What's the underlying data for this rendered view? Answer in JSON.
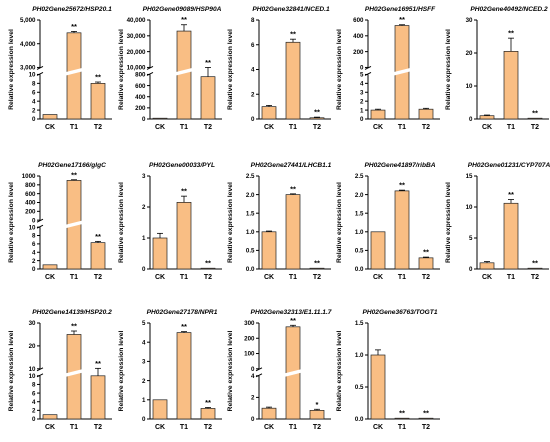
{
  "colors": {
    "bar_fill": "#f9be84",
    "bar_stroke": "#222222",
    "axis": "#000000",
    "break": "#ffffff"
  },
  "ylabel": "Relative expression level",
  "chart_data": [
    {
      "type": "bar",
      "title": "PH02Gene25672/HSP20.1",
      "categories": [
        "CK",
        "T1",
        "T2"
      ],
      "values": [
        1,
        4460,
        8
      ],
      "errors": [
        0.1,
        60,
        0.3
      ],
      "significance": [
        "",
        "**",
        "**"
      ],
      "broken_axis": true,
      "lower_ticks": [
        "0",
        "2",
        "4",
        "6",
        "8",
        "10"
      ],
      "upper_ticks": [
        "3,000",
        "4,000",
        "5,000"
      ],
      "lower_range": [
        0,
        10
      ],
      "upper_range": [
        3000,
        5000
      ],
      "ylabel": "Relative expression level"
    },
    {
      "type": "bar",
      "title": "PH02Gene09089/HSP90A",
      "categories": [
        "CK",
        "T1",
        "T2"
      ],
      "values": [
        1,
        33000,
        760
      ],
      "errors": [
        0.1,
        4000,
        50
      ],
      "significance": [
        "",
        "**",
        "**"
      ],
      "broken_axis": true,
      "lower_ticks": [
        "0",
        "200",
        "400",
        "600",
        "800"
      ],
      "upper_ticks": [
        "10,000",
        "20,000",
        "30,000",
        "40,000"
      ],
      "lower_range": [
        0,
        800
      ],
      "upper_range": [
        10000,
        40000
      ],
      "ylabel": "Relative expression level"
    },
    {
      "type": "bar",
      "title": "PH02Gene32841/NCED.1",
      "categories": [
        "CK",
        "T1",
        "T2"
      ],
      "values": [
        1,
        6.2,
        0.1
      ],
      "errors": [
        0.1,
        0.25,
        0.05
      ],
      "significance": [
        "",
        "**",
        "**"
      ],
      "broken_axis": false,
      "ticks": [
        "0",
        "2",
        "4",
        "6",
        "8"
      ],
      "ylim": [
        0,
        8
      ],
      "ylabel": "Relative expression level"
    },
    {
      "type": "bar",
      "title": "PH02Gene16951/HSFF",
      "categories": [
        "CK",
        "T1",
        "T2"
      ],
      "values": [
        1,
        530,
        1.1
      ],
      "errors": [
        0.1,
        10,
        0.1
      ],
      "significance": [
        "",
        "**",
        ""
      ],
      "broken_axis": true,
      "lower_ticks": [
        "0",
        "1",
        "2",
        "3",
        "4",
        "5"
      ],
      "upper_ticks": [
        "0",
        "200",
        "400",
        "600"
      ],
      "lower_range": [
        0,
        5
      ],
      "upper_range": [
        0,
        600
      ],
      "ylabel": "Relative expression level"
    },
    {
      "type": "bar",
      "title": "PH02Gene40492/NCED.2",
      "categories": [
        "CK",
        "T1",
        "T2"
      ],
      "values": [
        1,
        20.5,
        0.2
      ],
      "errors": [
        0.2,
        4,
        0.05
      ],
      "significance": [
        "",
        "**",
        "**"
      ],
      "broken_axis": false,
      "ticks": [
        "0",
        "10",
        "20",
        "30"
      ],
      "ylim": [
        0,
        30
      ],
      "ylabel": "Relative expression level"
    },
    {
      "type": "bar",
      "title": "PH02Gene17166/glgC",
      "categories": [
        "CK",
        "T1",
        "T2"
      ],
      "values": [
        1,
        900,
        6.3
      ],
      "errors": [
        0.1,
        15,
        0.3
      ],
      "significance": [
        "",
        "**",
        "**"
      ],
      "broken_axis": true,
      "lower_ticks": [
        "0",
        "2",
        "4",
        "6",
        "8",
        "10"
      ],
      "upper_ticks": [
        "0",
        "200",
        "400",
        "600",
        "800",
        "1000"
      ],
      "lower_range": [
        0,
        10
      ],
      "upper_range": [
        0,
        1000
      ],
      "ylabel": "Relative expression level"
    },
    {
      "type": "bar",
      "title": "PH02Gene00033/PYL",
      "categories": [
        "CK",
        "T1",
        "T2"
      ],
      "values": [
        1,
        2.15,
        0.02
      ],
      "errors": [
        0.15,
        0.2,
        0.01
      ],
      "significance": [
        "",
        "**",
        "**"
      ],
      "broken_axis": false,
      "ticks": [
        "0",
        "1",
        "2",
        "3"
      ],
      "ylim": [
        0,
        3
      ],
      "ylabel": "Relative expression level"
    },
    {
      "type": "bar",
      "title": "PH02Gene27441/LHCB1.1",
      "categories": [
        "CK",
        "T1",
        "T2"
      ],
      "values": [
        1,
        2.0,
        0.02
      ],
      "errors": [
        0.02,
        0.02,
        0.01
      ],
      "significance": [
        "",
        "**",
        "**"
      ],
      "broken_axis": false,
      "ticks": [
        "0.0",
        "0.5",
        "1.0",
        "1.5",
        "2.0",
        "2.5"
      ],
      "ylim": [
        0,
        2.5
      ],
      "ylabel": "Relative expression level"
    },
    {
      "type": "bar",
      "title": "PH02Gene41897/ribBA",
      "categories": [
        "CK",
        "T1",
        "T2"
      ],
      "values": [
        1,
        2.1,
        0.3
      ],
      "errors": [
        0.01,
        0.02,
        0.02
      ],
      "significance": [
        "",
        "**",
        "**"
      ],
      "broken_axis": false,
      "ticks": [
        "0.0",
        "0.5",
        "1.0",
        "1.5",
        "2.0",
        "2.5"
      ],
      "ylim": [
        0,
        2.5
      ],
      "ylabel": "Relative expression level"
    },
    {
      "type": "bar",
      "title": "PH02Gene01231/CYP707A",
      "categories": [
        "CK",
        "T1",
        "T2"
      ],
      "values": [
        1,
        10.6,
        0.1
      ],
      "errors": [
        0.2,
        0.6,
        0.05
      ],
      "significance": [
        "",
        "**",
        "**"
      ],
      "broken_axis": false,
      "ticks": [
        "0",
        "5",
        "10",
        "15"
      ],
      "ylim": [
        0,
        15
      ],
      "ylabel": "Relative expression level"
    },
    {
      "type": "bar",
      "title": "PH02Gene14139/HSP20.2",
      "categories": [
        "CK",
        "T1",
        "T2"
      ],
      "values": [
        1,
        25,
        10
      ],
      "errors": [
        0.1,
        1.5,
        0.2
      ],
      "significance": [
        "",
        "**",
        "**"
      ],
      "broken_axis": true,
      "lower_ticks": [
        "0",
        "2",
        "4",
        "6",
        "8",
        "10"
      ],
      "upper_ticks": [
        "10",
        "20",
        "30"
      ],
      "lower_range": [
        0,
        10
      ],
      "upper_range": [
        10,
        30
      ],
      "ylabel": "Relative expression level"
    },
    {
      "type": "bar",
      "title": "PH02Gene27178/NPR1",
      "categories": [
        "CK",
        "T1",
        "T2"
      ],
      "values": [
        1,
        4.5,
        0.55
      ],
      "errors": [
        0.02,
        0.05,
        0.05
      ],
      "significance": [
        "",
        "**",
        "**"
      ],
      "broken_axis": false,
      "ticks": [
        "0",
        "1",
        "2",
        "3",
        "4",
        "5"
      ],
      "ylim": [
        0,
        5
      ],
      "ylabel": "Relative expression level"
    },
    {
      "type": "bar",
      "title": "PH02Gene32313/E1.11.1.7",
      "categories": [
        "CK",
        "T1",
        "T2"
      ],
      "values": [
        1,
        275,
        0.8
      ],
      "errors": [
        0.1,
        10,
        0.1
      ],
      "significance": [
        "",
        "**",
        "*"
      ],
      "broken_axis": true,
      "lower_ticks": [
        "0",
        "2",
        "4"
      ],
      "upper_ticks": [
        "0",
        "100",
        "200",
        "300"
      ],
      "lower_range": [
        0,
        4
      ],
      "upper_range": [
        0,
        300
      ],
      "ylabel": "Relative expression level"
    },
    {
      "type": "bar",
      "title": "PH02Gene36763/TOGT1",
      "categories": [
        "CK",
        "T1",
        "T2"
      ],
      "values": [
        1,
        0.01,
        0.01
      ],
      "errors": [
        0.08,
        0.005,
        0.005
      ],
      "significance": [
        "",
        "**",
        "**"
      ],
      "broken_axis": false,
      "ticks": [
        "0.0",
        "0.5",
        "1.0",
        "1.5"
      ],
      "ylim": [
        0,
        1.5
      ],
      "ylabel": "Relative expression level"
    }
  ]
}
